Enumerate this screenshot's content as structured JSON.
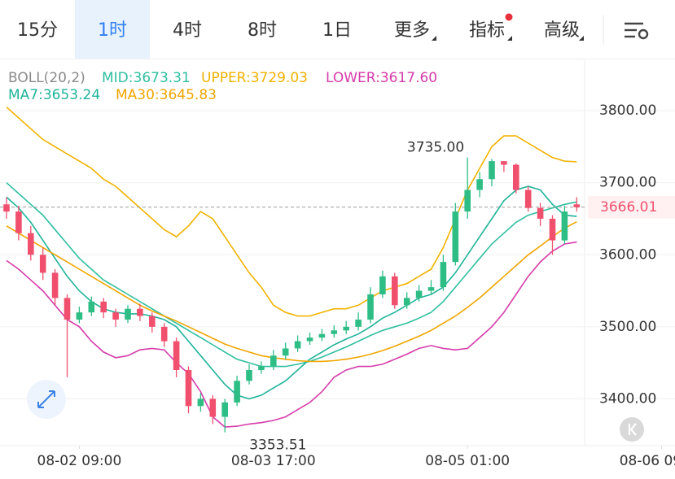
{
  "tabs": [
    "15分",
    "1时",
    "4时",
    "8时",
    "1日",
    "更多",
    "指标",
    "高级"
  ],
  "selected_tab": 1,
  "chart_data": {
    "type": "candlestick",
    "indicator": "BOLL(20,2)",
    "ylim": [
      3335,
      3869
    ],
    "yticks": [
      {
        "value": 3400,
        "label": "3400.00"
      },
      {
        "value": 3500,
        "label": "3500.00"
      },
      {
        "value": 3600,
        "label": "3600.00"
      },
      {
        "value": 3700,
        "label": "3700.00"
      },
      {
        "value": 3800,
        "label": "3800.00"
      }
    ],
    "xticks": [
      {
        "value": 6,
        "label": "08-02 09:00"
      },
      {
        "value": 22,
        "label": "08-03 17:00"
      },
      {
        "value": 38,
        "label": "08-05 01:00"
      },
      {
        "value": 54,
        "label": "08-06 09:00"
      }
    ],
    "grid": true,
    "up_color": "#2ebd85",
    "down_color": "#f0506e",
    "last_price": 3666.01,
    "high_label": "3735.00",
    "low_label": "3353.51",
    "candles": {
      "open": [
        3670,
        3660,
        3630,
        3600,
        3575,
        3540,
        3510,
        3520,
        3535,
        3520,
        3510,
        3525,
        3515,
        3500,
        3480,
        3440,
        3390,
        3400,
        3375,
        3395,
        3425,
        3440,
        3445,
        3460,
        3470,
        3480,
        3485,
        3490,
        3495,
        3500,
        3510,
        3545,
        3570,
        3530,
        3540,
        3550,
        3555,
        3590,
        3660,
        3690,
        3705,
        3730,
        3725,
        3690,
        3665,
        3650,
        3620,
        3670
      ],
      "high": [
        3680,
        3668,
        3640,
        3610,
        3580,
        3545,
        3528,
        3542,
        3540,
        3525,
        3530,
        3532,
        3520,
        3505,
        3485,
        3445,
        3408,
        3405,
        3400,
        3432,
        3448,
        3452,
        3468,
        3478,
        3488,
        3492,
        3497,
        3502,
        3508,
        3520,
        3555,
        3578,
        3575,
        3548,
        3558,
        3565,
        3600,
        3672,
        3735,
        3715,
        3733,
        3728,
        3727,
        3695,
        3672,
        3655,
        3668,
        3680
      ],
      "low": [
        3650,
        3620,
        3592,
        3565,
        3530,
        3430,
        3505,
        3515,
        3512,
        3500,
        3505,
        3508,
        3492,
        3472,
        3430,
        3380,
        3382,
        3365,
        3353.51,
        3390,
        3420,
        3435,
        3440,
        3455,
        3465,
        3475,
        3480,
        3485,
        3490,
        3495,
        3505,
        3540,
        3525,
        3525,
        3535,
        3545,
        3550,
        3585,
        3650,
        3680,
        3695,
        3715,
        3685,
        3660,
        3640,
        3600,
        3615,
        3660
      ],
      "close": [
        3660,
        3630,
        3600,
        3575,
        3540,
        3510,
        3520,
        3535,
        3520,
        3510,
        3525,
        3515,
        3500,
        3480,
        3440,
        3390,
        3400,
        3375,
        3395,
        3425,
        3440,
        3445,
        3460,
        3470,
        3480,
        3485,
        3490,
        3495,
        3500,
        3510,
        3545,
        3570,
        3530,
        3540,
        3550,
        3555,
        3590,
        3660,
        3690,
        3705,
        3730,
        3725,
        3690,
        3665,
        3650,
        3620,
        3660,
        3666.01
      ]
    },
    "series": [
      {
        "name": "MID:3673.31",
        "color": "#2fbfa0",
        "values": [
          3700,
          3685,
          3670,
          3655,
          3635,
          3615,
          3595,
          3580,
          3565,
          3555,
          3545,
          3535,
          3525,
          3515,
          3505,
          3495,
          3485,
          3475,
          3465,
          3455,
          3450,
          3445,
          3445,
          3445,
          3448,
          3452,
          3458,
          3465,
          3472,
          3480,
          3488,
          3495,
          3500,
          3505,
          3512,
          3520,
          3535,
          3555,
          3575,
          3595,
          3615,
          3630,
          3645,
          3655,
          3660,
          3665,
          3670,
          3673.31
        ]
      },
      {
        "name": "UPPER:3729.03",
        "color": "#f2b200",
        "values": [
          3805,
          3790,
          3775,
          3760,
          3750,
          3740,
          3730,
          3720,
          3705,
          3695,
          3680,
          3665,
          3650,
          3635,
          3625,
          3640,
          3660,
          3650,
          3625,
          3600,
          3575,
          3555,
          3530,
          3520,
          3515,
          3515,
          3520,
          3525,
          3525,
          3530,
          3540,
          3550,
          3555,
          3560,
          3570,
          3580,
          3610,
          3650,
          3690,
          3720,
          3750,
          3765,
          3765,
          3755,
          3745,
          3735,
          3730,
          3729.03
        ]
      },
      {
        "name": "LOWER:3617.60",
        "color": "#d63cab",
        "values": [
          3592,
          3580,
          3565,
          3550,
          3530,
          3510,
          3500,
          3480,
          3465,
          3457,
          3460,
          3468,
          3470,
          3468,
          3450,
          3435,
          3410,
          3375,
          3361,
          3362,
          3365,
          3367,
          3370,
          3375,
          3385,
          3395,
          3410,
          3430,
          3440,
          3445,
          3445,
          3448,
          3455,
          3462,
          3470,
          3474,
          3470,
          3468,
          3470,
          3485,
          3500,
          3520,
          3545,
          3570,
          3590,
          3605,
          3615,
          3617.6
        ]
      },
      {
        "name": "MA7:3653.24",
        "color": "#1fb39a",
        "values": [
          3680,
          3665,
          3645,
          3620,
          3595,
          3570,
          3550,
          3535,
          3525,
          3520,
          3518,
          3518,
          3515,
          3510,
          3500,
          3480,
          3460,
          3440,
          3420,
          3405,
          3400,
          3405,
          3415,
          3425,
          3440,
          3455,
          3465,
          3475,
          3483,
          3490,
          3500,
          3512,
          3520,
          3530,
          3540,
          3545,
          3555,
          3575,
          3600,
          3625,
          3650,
          3675,
          3690,
          3695,
          3690,
          3670,
          3655,
          3653.24
        ]
      },
      {
        "name": "MA30:3645.83",
        "color": "#f0a500",
        "values": [
          3640,
          3630,
          3620,
          3610,
          3600,
          3590,
          3580,
          3570,
          3560,
          3550,
          3540,
          3530,
          3522,
          3515,
          3508,
          3500,
          3492,
          3484,
          3476,
          3470,
          3465,
          3460,
          3457,
          3455,
          3453,
          3452,
          3452,
          3453,
          3455,
          3458,
          3462,
          3467,
          3473,
          3480,
          3487,
          3495,
          3505,
          3515,
          3527,
          3540,
          3555,
          3570,
          3585,
          3600,
          3612,
          3625,
          3637,
          3645.83
        ]
      }
    ]
  }
}
